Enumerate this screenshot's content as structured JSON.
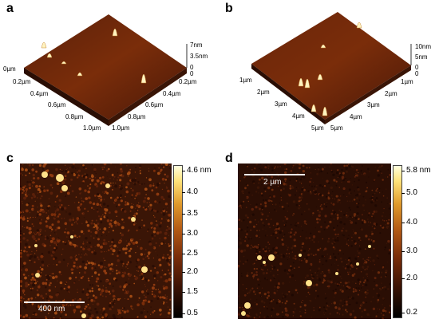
{
  "panels": {
    "a": {
      "letter": "a",
      "z_labels": [
        "7nm",
        "3.5nm",
        "0"
      ],
      "left_axis": [
        "0µm",
        "0.2µm",
        "0.4µm",
        "0.6µm",
        "0.8µm",
        "1.0µm"
      ],
      "right_axis": [
        "0",
        "0.2µm",
        "0.4µm",
        "0.6µm",
        "0.8µm",
        "1.0µm"
      ]
    },
    "b": {
      "letter": "b",
      "z_labels": [
        "10nm",
        "5nm",
        "0"
      ],
      "left_axis": [
        "1µm",
        "2µm",
        "3µm",
        "4µm",
        "5µm"
      ],
      "right_axis": [
        "0",
        "1µm",
        "2µm",
        "3µm",
        "4µm",
        "5µm"
      ]
    },
    "c": {
      "letter": "c",
      "colorbar_labels": [
        "4.6 nm",
        "4.0",
        "3.5",
        "3.0",
        "2.5",
        "2.0",
        "1.5",
        "0.5"
      ],
      "scalebar_label": "400 nm"
    },
    "d": {
      "letter": "d",
      "colorbar_labels": [
        "5.8 nm",
        "5.0",
        "4.0",
        "3.0",
        "2.0",
        "0.2"
      ],
      "scalebar_label": "2 µm"
    }
  },
  "colors": {
    "surface_dark": "#3a1506",
    "surface_mid": "#7a2d0a",
    "peak": "#fff3c0",
    "background": "#ffffff"
  }
}
